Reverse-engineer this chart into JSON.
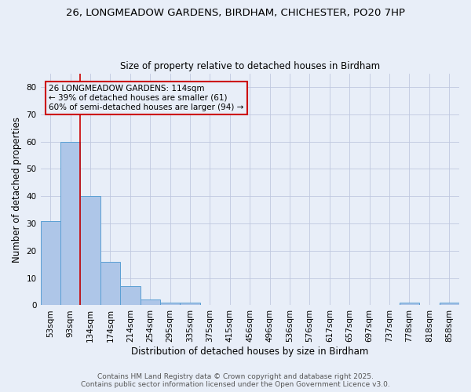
{
  "title1": "26, LONGMEADOW GARDENS, BIRDHAM, CHICHESTER, PO20 7HP",
  "title2": "Size of property relative to detached houses in Birdham",
  "xlabel": "Distribution of detached houses by size in Birdham",
  "ylabel": "Number of detached properties",
  "categories": [
    "53sqm",
    "93sqm",
    "134sqm",
    "174sqm",
    "214sqm",
    "254sqm",
    "295sqm",
    "335sqm",
    "375sqm",
    "415sqm",
    "456sqm",
    "496sqm",
    "536sqm",
    "576sqm",
    "617sqm",
    "657sqm",
    "697sqm",
    "737sqm",
    "778sqm",
    "818sqm",
    "858sqm"
  ],
  "values": [
    31,
    60,
    40,
    16,
    7,
    2,
    1,
    1,
    0,
    0,
    0,
    0,
    0,
    0,
    0,
    0,
    0,
    0,
    1,
    0,
    1
  ],
  "bar_color": "#aec6e8",
  "bar_edge_color": "#5a9fd4",
  "vline_x": 1.5,
  "vline_color": "#cc0000",
  "annotation_line1": "26 LONGMEADOW GARDENS: 114sqm",
  "annotation_line2": "← 39% of detached houses are smaller (61)",
  "annotation_line3": "60% of semi-detached houses are larger (94) →",
  "annotation_box_color": "#cc0000",
  "ylim": [
    0,
    85
  ],
  "yticks": [
    0,
    10,
    20,
    30,
    40,
    50,
    60,
    70,
    80
  ],
  "footer1": "Contains HM Land Registry data © Crown copyright and database right 2025.",
  "footer2": "Contains public sector information licensed under the Open Government Licence v3.0.",
  "bg_color": "#e8eef8",
  "grid_color": "#c0c8e0"
}
